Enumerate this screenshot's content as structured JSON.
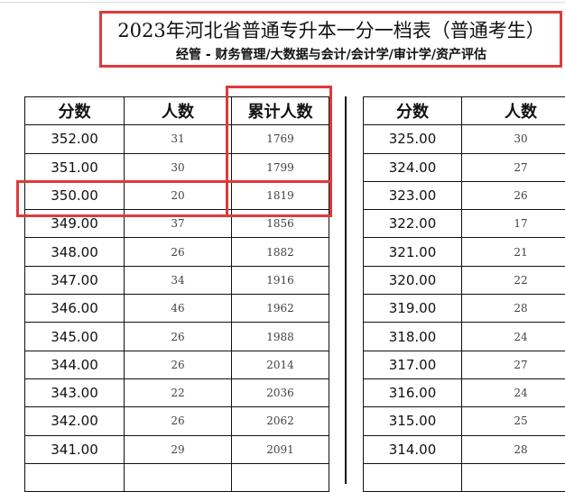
{
  "document": {
    "title": "2023年河北省普通专升本一分一档表（普通考生）",
    "subtitle": "经管 - 财务管理/大数据与会计/会计学/审计学/资产评估"
  },
  "left_table": {
    "headers": [
      "分数",
      "人数",
      "累计人数"
    ],
    "rows": [
      [
        "352.00",
        "31",
        "1769"
      ],
      [
        "351.00",
        "30",
        "1799"
      ],
      [
        "350.00",
        "20",
        "1819"
      ],
      [
        "349.00",
        "37",
        "1856"
      ],
      [
        "348.00",
        "26",
        "1882"
      ],
      [
        "347.00",
        "34",
        "1916"
      ],
      [
        "346.00",
        "46",
        "1962"
      ],
      [
        "345.00",
        "26",
        "1988"
      ],
      [
        "344.00",
        "26",
        "2014"
      ],
      [
        "343.00",
        "22",
        "2036"
      ],
      [
        "342.00",
        "26",
        "2062"
      ],
      [
        "341.00",
        "29",
        "2091"
      ]
    ]
  },
  "right_table": {
    "headers": [
      "分数",
      "人数"
    ],
    "rows": [
      [
        "325.00",
        "30"
      ],
      [
        "324.00",
        "27"
      ],
      [
        "323.00",
        "26"
      ],
      [
        "322.00",
        "17"
      ],
      [
        "321.00",
        "21"
      ],
      [
        "320.00",
        "22"
      ],
      [
        "319.00",
        "28"
      ],
      [
        "318.00",
        "24"
      ],
      [
        "317.00",
        "27"
      ],
      [
        "316.00",
        "24"
      ],
      [
        "315.00",
        "25"
      ],
      [
        "314.00",
        "28"
      ]
    ]
  },
  "highlight_color": "#e0393b",
  "highlighted_row": "350.00"
}
